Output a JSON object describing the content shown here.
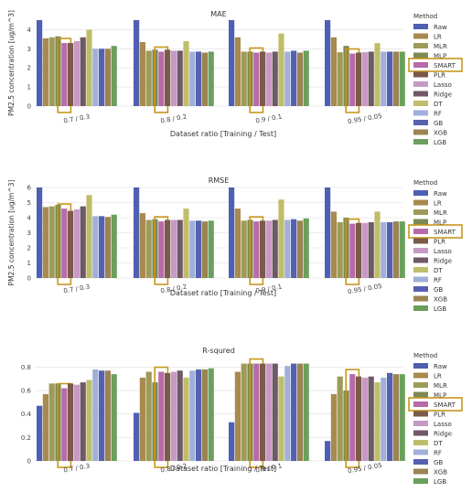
{
  "figure": {
    "ylabel": "PM2.5 concentration [ug/m^3]",
    "xlabel": "Dataset ratio [Training / Test]"
  },
  "legend": {
    "title": "Method",
    "highlight": "SMART"
  },
  "colors": {
    "Raw": "#4f5fb2",
    "LR": "#a88a4f",
    "MLR": "#9e9b5a",
    "MLP": "#7c8a52",
    "SMART": "#b86aa9",
    "PLR": "#7a5a48",
    "Lasso": "#c79ac4",
    "Ridge": "#6f5868",
    "DT": "#c0bd6a",
    "RF": "#9fb0da",
    "GB": "#5561b0",
    "XGB": "#9b8452",
    "LGB": "#6aa05c",
    "highlight_box": "#c8961e"
  },
  "chart_data": [
    {
      "type": "bar",
      "title": "MAE",
      "categories": [
        "0.7 / 0.3",
        "0.8 / 0.2",
        "0.9 / 0.1",
        "0.95 / 0.05"
      ],
      "ylim": [
        0,
        4.5
      ],
      "yticks": [
        0,
        1,
        2,
        3,
        4
      ],
      "series": [
        {
          "name": "Raw",
          "values": [
            4.5,
            4.5,
            4.5,
            4.5
          ]
        },
        {
          "name": "LR",
          "values": [
            3.55,
            3.35,
            3.6,
            3.6
          ]
        },
        {
          "name": "MLR",
          "values": [
            3.6,
            2.9,
            2.85,
            2.82
          ]
        },
        {
          "name": "MLP",
          "values": [
            3.65,
            2.95,
            2.85,
            3.15
          ]
        },
        {
          "name": "SMART",
          "values": [
            3.3,
            2.85,
            2.8,
            2.75
          ]
        },
        {
          "name": "PLR",
          "values": [
            3.3,
            2.95,
            2.85,
            2.8
          ]
        },
        {
          "name": "Lasso",
          "values": [
            3.4,
            2.9,
            2.8,
            2.82
          ]
        },
        {
          "name": "Ridge",
          "values": [
            3.6,
            2.9,
            2.85,
            2.85
          ]
        },
        {
          "name": "DT",
          "values": [
            4.0,
            3.4,
            3.8,
            3.3
          ]
        },
        {
          "name": "RF",
          "values": [
            3.0,
            2.85,
            2.85,
            2.85
          ]
        },
        {
          "name": "GB",
          "values": [
            3.0,
            2.85,
            2.9,
            2.85
          ]
        },
        {
          "name": "XGB",
          "values": [
            3.0,
            2.8,
            2.8,
            2.85
          ]
        },
        {
          "name": "LGB",
          "values": [
            3.15,
            2.85,
            2.9,
            2.85
          ]
        }
      ]
    },
    {
      "type": "bar",
      "title": "RMSE",
      "categories": [
        "0.7 / 0.3",
        "0.8 / 0.2",
        "0.9 / 0.1",
        "0.95 / 0.05"
      ],
      "ylim": [
        0,
        6
      ],
      "yticks": [
        0,
        1,
        2,
        3,
        4,
        5,
        6
      ],
      "series": [
        {
          "name": "Raw",
          "values": [
            6.0,
            6.0,
            6.0,
            6.0
          ]
        },
        {
          "name": "LR",
          "values": [
            4.7,
            4.3,
            4.6,
            4.4
          ]
        },
        {
          "name": "MLR",
          "values": [
            4.75,
            3.85,
            3.8,
            3.7
          ]
        },
        {
          "name": "MLP",
          "values": [
            4.85,
            3.9,
            3.85,
            4.0
          ]
        },
        {
          "name": "SMART",
          "values": [
            4.6,
            3.75,
            3.75,
            3.6
          ]
        },
        {
          "name": "PLR",
          "values": [
            4.45,
            3.85,
            3.8,
            3.65
          ]
        },
        {
          "name": "Lasso",
          "values": [
            4.55,
            3.85,
            3.8,
            3.65
          ]
        },
        {
          "name": "Ridge",
          "values": [
            4.75,
            3.85,
            3.85,
            3.7
          ]
        },
        {
          "name": "DT",
          "values": [
            5.5,
            4.6,
            5.2,
            4.4
          ]
        },
        {
          "name": "RF",
          "values": [
            4.1,
            3.8,
            3.85,
            3.7
          ]
        },
        {
          "name": "GB",
          "values": [
            4.1,
            3.8,
            3.9,
            3.7
          ]
        },
        {
          "name": "XGB",
          "values": [
            4.05,
            3.75,
            3.8,
            3.75
          ]
        },
        {
          "name": "LGB",
          "values": [
            4.2,
            3.8,
            3.95,
            3.75
          ]
        }
      ]
    },
    {
      "type": "bar",
      "title": "R-squred",
      "categories": [
        "0.7 / 0.3",
        "0.8 / 0.2",
        "0.9 / 0.1",
        "0.95 / 0.05"
      ],
      "ylim": [
        0,
        0.85
      ],
      "yticks": [
        0,
        0.2,
        0.4,
        0.6,
        0.8
      ],
      "series": [
        {
          "name": "Raw",
          "values": [
            0.47,
            0.41,
            0.33,
            0.17
          ]
        },
        {
          "name": "LR",
          "values": [
            0.57,
            0.71,
            0.76,
            0.57
          ]
        },
        {
          "name": "MLR",
          "values": [
            0.66,
            0.76,
            0.83,
            0.72
          ]
        },
        {
          "name": "MLP",
          "values": [
            0.66,
            0.67,
            0.83,
            0.6
          ]
        },
        {
          "name": "SMART",
          "values": [
            0.62,
            0.76,
            0.83,
            0.74
          ]
        },
        {
          "name": "PLR",
          "values": [
            0.66,
            0.75,
            0.83,
            0.72
          ]
        },
        {
          "name": "Lasso",
          "values": [
            0.65,
            0.76,
            0.83,
            0.71
          ]
        },
        {
          "name": "Ridge",
          "values": [
            0.67,
            0.77,
            0.83,
            0.72
          ]
        },
        {
          "name": "DT",
          "values": [
            0.69,
            0.71,
            0.72,
            0.67
          ]
        },
        {
          "name": "RF",
          "values": [
            0.78,
            0.77,
            0.81,
            0.71
          ]
        },
        {
          "name": "GB",
          "values": [
            0.77,
            0.78,
            0.83,
            0.75
          ]
        },
        {
          "name": "XGB",
          "values": [
            0.77,
            0.78,
            0.83,
            0.74
          ]
        },
        {
          "name": "LGB",
          "values": [
            0.74,
            0.79,
            0.83,
            0.74
          ]
        }
      ]
    }
  ]
}
